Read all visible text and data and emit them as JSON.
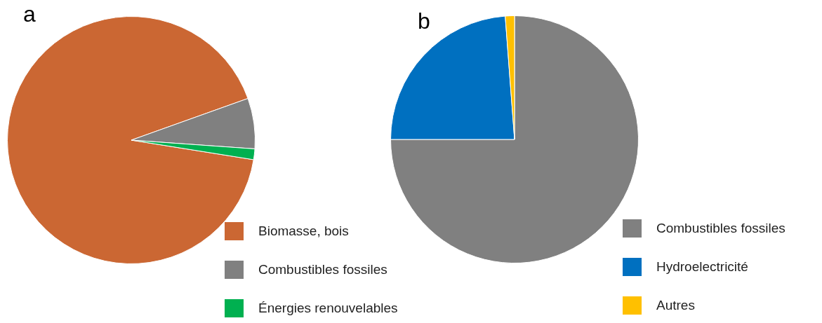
{
  "chart_data": [
    {
      "type": "pie",
      "title": "a",
      "categories": [
        "Biomasse, bois",
        "Combustibles fossiles",
        "Énergies renouvelables"
      ],
      "values": [
        92,
        6.6,
        1.4
      ],
      "colors": [
        "#cb6733",
        "#808080",
        "#00b050"
      ],
      "legend": "bottom right"
    },
    {
      "type": "pie",
      "title": "b",
      "categories": [
        "Combustibles fossiles",
        "Hydroelectricité",
        "Autres"
      ],
      "values": [
        75,
        23.8,
        1.2
      ],
      "colors": [
        "#808080",
        "#0070c0",
        "#ffc000"
      ],
      "legend": "bottom right"
    }
  ]
}
